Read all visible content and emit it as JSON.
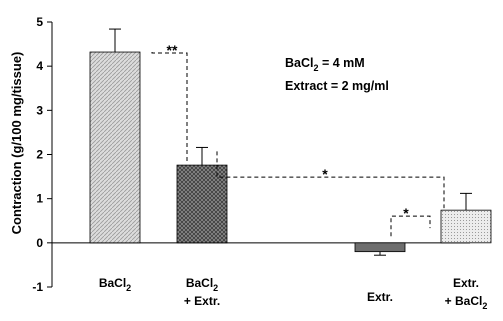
{
  "chart_data": {
    "type": "bar",
    "ylabel": "Contraction (g/100 mg/tissue)",
    "ylim": [
      -1,
      5
    ],
    "yticks": [
      -1,
      0,
      1,
      2,
      3,
      4,
      5
    ],
    "grid": false,
    "bars": [
      {
        "label_line1": "BaCl",
        "label_sub": "2",
        "label_line2": "",
        "value": 4.32,
        "error": 0.52,
        "fill": "light-diagonal-hatch"
      },
      {
        "label_line1": "BaCl",
        "label_sub": "2",
        "label_line2": "+ Extr.",
        "value": 1.76,
        "error": 0.4,
        "fill": "dark-crosshatch"
      },
      {
        "label_line1": "Extr.",
        "label_sub": "",
        "label_line2": "",
        "value": -0.2,
        "error": 0.08,
        "fill": "dark-grey"
      },
      {
        "label_line1": "Extr.",
        "label_sub": "",
        "label_line2": "+ BaCl",
        "label_sub2": "2",
        "value": 0.74,
        "error": 0.38,
        "fill": "light-dotted"
      }
    ],
    "annotations": {
      "conc_line1_main": "BaCl",
      "conc_line1_sub": "2",
      "conc_line1_rest": " = 4 mM",
      "conc_line2": "Extract = 2 mg/ml"
    },
    "significance": [
      {
        "from": 0,
        "to": 1,
        "label": "**"
      },
      {
        "from": 1,
        "to": 3,
        "label": "*"
      },
      {
        "from": 2,
        "to": 3,
        "label": "*"
      }
    ]
  }
}
